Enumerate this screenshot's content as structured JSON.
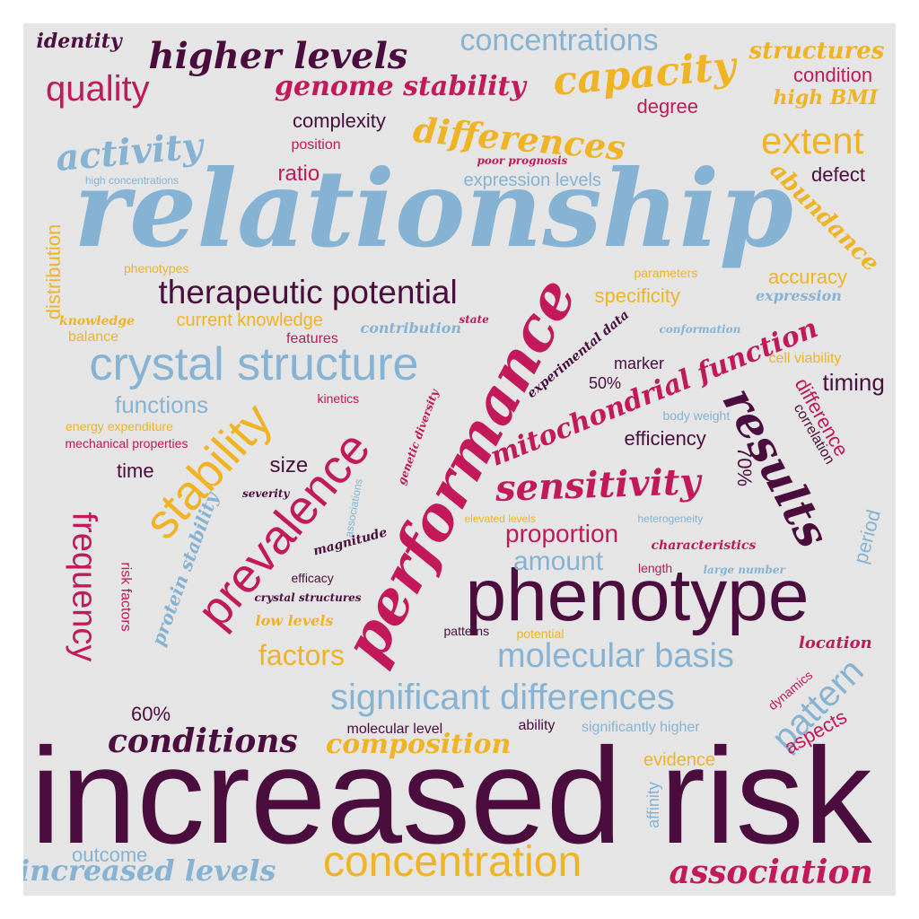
{
  "palette": {
    "plum": "#4a0d3e",
    "crimson": "#c3185a",
    "gold": "#f0b323",
    "blue": "#86b3d3",
    "background": "#e5e5e5"
  },
  "words": [
    {
      "name": "increased-risk",
      "text": "increased risk",
      "color": "plum",
      "font": "sans"
    },
    {
      "name": "relationship",
      "text": "relationship",
      "color": "blue",
      "font": "script"
    },
    {
      "name": "phenotype",
      "text": "phenotype",
      "color": "plum",
      "font": "sans"
    },
    {
      "name": "performance",
      "text": "performance",
      "color": "crimson",
      "font": "script"
    },
    {
      "name": "prevalence",
      "text": "prevalence",
      "color": "crimson",
      "font": "sans"
    },
    {
      "name": "stability",
      "text": "stability",
      "color": "gold",
      "font": "sans"
    },
    {
      "name": "results",
      "text": "results",
      "color": "plum",
      "font": "script"
    },
    {
      "name": "crystal-structure",
      "text": "crystal structure",
      "color": "blue",
      "font": "sans"
    },
    {
      "name": "concentration",
      "text": "concentration",
      "color": "gold",
      "font": "sans"
    },
    {
      "name": "significant-differences",
      "text": "significant differences",
      "color": "blue",
      "font": "sans"
    },
    {
      "name": "conditions",
      "text": "conditions",
      "color": "plum",
      "font": "script"
    },
    {
      "name": "frequency",
      "text": "frequency",
      "color": "crimson",
      "font": "sans"
    },
    {
      "name": "therapeutic-potential",
      "text": "therapeutic potential",
      "color": "plum",
      "font": "sans"
    },
    {
      "name": "molecular-basis",
      "text": "molecular basis",
      "color": "blue",
      "font": "sans"
    },
    {
      "name": "sensitivity",
      "text": "sensitivity",
      "color": "crimson",
      "font": "script"
    },
    {
      "name": "higher-levels",
      "text": "higher levels",
      "color": "plum",
      "font": "script"
    },
    {
      "name": "capacity",
      "text": "capacity",
      "color": "gold",
      "font": "script"
    },
    {
      "name": "differences",
      "text": "differences",
      "color": "gold",
      "font": "script"
    },
    {
      "name": "activity",
      "text": "activity",
      "color": "blue",
      "font": "script"
    },
    {
      "name": "extent",
      "text": "extent",
      "color": "gold",
      "font": "sans"
    },
    {
      "name": "quality",
      "text": "quality",
      "color": "crimson",
      "font": "sans"
    },
    {
      "name": "concentrations",
      "text": "concentrations",
      "color": "blue",
      "font": "sans"
    },
    {
      "name": "genome-stability",
      "text": "genome stability",
      "color": "crimson",
      "font": "script"
    },
    {
      "name": "association",
      "text": "association",
      "color": "crimson",
      "font": "script"
    },
    {
      "name": "increased-levels",
      "text": "increased levels",
      "color": "blue",
      "font": "script"
    },
    {
      "name": "composition",
      "text": "composition",
      "color": "gold",
      "font": "script"
    },
    {
      "name": "mitochondrial-function",
      "text": "mitochondrial function",
      "color": "crimson",
      "font": "script"
    },
    {
      "name": "pattern",
      "text": "pattern",
      "color": "blue",
      "font": "sans"
    },
    {
      "name": "abundance",
      "text": "abundance",
      "color": "gold",
      "font": "script"
    },
    {
      "name": "structures",
      "text": "structures",
      "color": "gold",
      "font": "script"
    },
    {
      "name": "identity",
      "text": "identity",
      "color": "plum",
      "font": "script"
    },
    {
      "name": "condition",
      "text": "condition",
      "color": "crimson",
      "font": "sans"
    },
    {
      "name": "high-bmi",
      "text": "high BMI",
      "color": "gold",
      "font": "script"
    },
    {
      "name": "degree",
      "text": "degree",
      "color": "crimson",
      "font": "sans"
    },
    {
      "name": "complexity",
      "text": "complexity",
      "color": "plum",
      "font": "sans"
    },
    {
      "name": "position",
      "text": "position",
      "color": "crimson",
      "font": "sans"
    },
    {
      "name": "poor-prognosis",
      "text": "poor prognosis",
      "color": "crimson",
      "font": "script"
    },
    {
      "name": "defect",
      "text": "defect",
      "color": "plum",
      "font": "sans"
    },
    {
      "name": "ratio",
      "text": "ratio",
      "color": "crimson",
      "font": "sans"
    },
    {
      "name": "high-concentrations",
      "text": "high concentrations",
      "color": "blue",
      "font": "sans"
    },
    {
      "name": "expression-levels",
      "text": "expression levels",
      "color": "blue",
      "font": "sans"
    },
    {
      "name": "distribution",
      "text": "distribution",
      "color": "gold",
      "font": "sans"
    },
    {
      "name": "phenotypes",
      "text": "phenotypes",
      "color": "gold",
      "font": "sans"
    },
    {
      "name": "parameters",
      "text": "parameters",
      "color": "gold",
      "font": "sans"
    },
    {
      "name": "accuracy",
      "text": "accuracy",
      "color": "gold",
      "font": "sans"
    },
    {
      "name": "specificity",
      "text": "specificity",
      "color": "gold",
      "font": "sans"
    },
    {
      "name": "expression",
      "text": "expression",
      "color": "blue",
      "font": "script"
    },
    {
      "name": "knowledge",
      "text": "knowledge",
      "color": "gold",
      "font": "script"
    },
    {
      "name": "current-knowledge",
      "text": "current knowledge",
      "color": "gold",
      "font": "sans"
    },
    {
      "name": "balance",
      "text": "balance",
      "color": "gold",
      "font": "sans"
    },
    {
      "name": "contribution",
      "text": "contribution",
      "color": "blue",
      "font": "script"
    },
    {
      "name": "state",
      "text": "state",
      "color": "crimson",
      "font": "script"
    },
    {
      "name": "conformation",
      "text": "conformation",
      "color": "blue",
      "font": "script"
    },
    {
      "name": "features",
      "text": "features",
      "color": "crimson",
      "font": "sans"
    },
    {
      "name": "experimental-data",
      "text": "experimental data",
      "color": "plum",
      "font": "script"
    },
    {
      "name": "marker",
      "text": "marker",
      "color": "plum",
      "font": "sans"
    },
    {
      "name": "cell-viability",
      "text": "cell viability",
      "color": "gold",
      "font": "sans"
    },
    {
      "name": "timing",
      "text": "timing",
      "color": "plum",
      "font": "sans"
    },
    {
      "name": "difference",
      "text": "difference",
      "color": "crimson",
      "font": "sans"
    },
    {
      "name": "correlation",
      "text": "correlation",
      "color": "plum",
      "font": "sans"
    },
    {
      "name": "percent-50",
      "text": "50%",
      "color": "plum",
      "font": "sans"
    },
    {
      "name": "kinetics",
      "text": "kinetics",
      "color": "crimson",
      "font": "sans"
    },
    {
      "name": "functions",
      "text": "functions",
      "color": "blue",
      "font": "sans"
    },
    {
      "name": "energy-expenditure",
      "text": "energy expenditure",
      "color": "gold",
      "font": "sans"
    },
    {
      "name": "mechanical-properties",
      "text": "mechanical properties",
      "color": "crimson",
      "font": "sans"
    },
    {
      "name": "genetic-diversity",
      "text": "genetic diversity",
      "color": "crimson",
      "font": "script"
    },
    {
      "name": "body-weight",
      "text": "body weight",
      "color": "blue",
      "font": "sans"
    },
    {
      "name": "efficiency",
      "text": "efficiency",
      "color": "plum",
      "font": "sans"
    },
    {
      "name": "percent-70",
      "text": "70%",
      "color": "plum",
      "font": "sans"
    },
    {
      "name": "time",
      "text": "time",
      "color": "plum",
      "font": "sans"
    },
    {
      "name": "size",
      "text": "size",
      "color": "plum",
      "font": "sans"
    },
    {
      "name": "severity",
      "text": "severity",
      "color": "plum",
      "font": "script"
    },
    {
      "name": "associations",
      "text": "associations",
      "color": "blue",
      "font": "sans"
    },
    {
      "name": "elevated-levels",
      "text": "elevated levels",
      "color": "gold",
      "font": "sans"
    },
    {
      "name": "heterogeneity",
      "text": "heterogeneity",
      "color": "blue",
      "font": "sans"
    },
    {
      "name": "period",
      "text": "period",
      "color": "blue",
      "font": "sans"
    },
    {
      "name": "proportion",
      "text": "proportion",
      "color": "crimson",
      "font": "sans"
    },
    {
      "name": "characteristics",
      "text": "characteristics",
      "color": "crimson",
      "font": "script"
    },
    {
      "name": "protein-stability",
      "text": "protein stability",
      "color": "blue",
      "font": "script"
    },
    {
      "name": "magnitude",
      "text": "magnitude",
      "color": "plum",
      "font": "script"
    },
    {
      "name": "amount",
      "text": "amount",
      "color": "blue",
      "font": "sans"
    },
    {
      "name": "length",
      "text": "length",
      "color": "crimson",
      "font": "sans"
    },
    {
      "name": "large-number",
      "text": "large number",
      "color": "blue",
      "font": "script"
    },
    {
      "name": "risk-factors",
      "text": "risk factors",
      "color": "crimson",
      "font": "sans"
    },
    {
      "name": "efficacy",
      "text": "efficacy",
      "color": "plum",
      "font": "sans"
    },
    {
      "name": "crystal-structures",
      "text": "crystal structures",
      "color": "plum",
      "font": "script"
    },
    {
      "name": "low-levels",
      "text": "low levels",
      "color": "gold",
      "font": "script"
    },
    {
      "name": "patterns",
      "text": "patterns",
      "color": "plum",
      "font": "sans"
    },
    {
      "name": "potential",
      "text": "potential",
      "color": "gold",
      "font": "sans"
    },
    {
      "name": "location",
      "text": "location",
      "color": "crimson",
      "font": "script"
    },
    {
      "name": "factors",
      "text": "factors",
      "color": "gold",
      "font": "sans"
    },
    {
      "name": "dynamics",
      "text": "dynamics",
      "color": "crimson",
      "font": "sans"
    },
    {
      "name": "percent-60",
      "text": "60%",
      "color": "plum",
      "font": "sans"
    },
    {
      "name": "molecular-level",
      "text": "molecular level",
      "color": "plum",
      "font": "sans"
    },
    {
      "name": "ability",
      "text": "ability",
      "color": "plum",
      "font": "sans"
    },
    {
      "name": "significantly-higher",
      "text": "significantly higher",
      "color": "blue",
      "font": "sans"
    },
    {
      "name": "aspects",
      "text": "aspects",
      "color": "crimson",
      "font": "sans"
    },
    {
      "name": "evidence",
      "text": "evidence",
      "color": "gold",
      "font": "sans"
    },
    {
      "name": "affinity",
      "text": "affinity",
      "color": "blue",
      "font": "sans"
    },
    {
      "name": "outcome",
      "text": "outcome",
      "color": "blue",
      "font": "sans"
    }
  ]
}
